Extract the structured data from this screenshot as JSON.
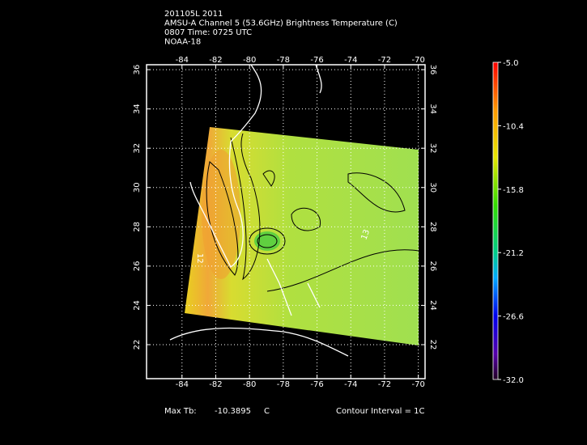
{
  "header": {
    "lines": [
      "201105L 2011",
      "AMSU-A Channel 5 (53.6GHz) Brightness Temperature (C)",
      "0807 Time: 0725 UTC",
      "NOAA-18"
    ]
  },
  "map": {
    "lonlim": [
      -86.1,
      -69.6
    ],
    "latlim": [
      20.27,
      36.25
    ],
    "lonticks": [
      -84,
      -82,
      -80,
      -78,
      -76,
      -74,
      -72,
      -70
    ],
    "latticks": [
      22,
      24,
      26,
      28,
      30,
      32,
      34,
      36
    ],
    "grid": true,
    "contour_labels": [
      "12",
      "13"
    ]
  },
  "colorbar": {
    "lim": [
      -32,
      -5
    ],
    "ticks": [
      {
        "value": -5,
        "label": "-5.0"
      },
      {
        "value": -10.4,
        "label": "-10.4"
      },
      {
        "value": -15.8,
        "label": "-15.8"
      },
      {
        "value": -21.2,
        "label": "-21.2"
      },
      {
        "value": -26.6,
        "label": "-26.6"
      },
      {
        "value": -32,
        "label": "-32.0"
      }
    ]
  },
  "footer": {
    "max_tb_label": "Max Tb:",
    "max_tb_value": "-10.3895",
    "max_tb_unit": "C",
    "contour_interval": "Contour Interval = 1C"
  }
}
